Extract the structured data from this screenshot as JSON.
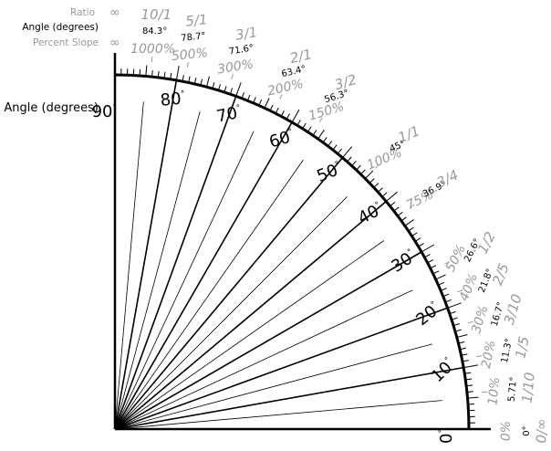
{
  "legend": {
    "ratio_label": "Ratio",
    "angle_label": "Angle (degrees)",
    "percent_label": "Percent Slope",
    "infinity_symbol": "∞"
  },
  "axis_label": "Angle (degrees)",
  "degree_labels": [
    "0°",
    "10°",
    "20°",
    "30°",
    "40°",
    "50°",
    "60°",
    "70°",
    "80°",
    "90°"
  ],
  "slope_marks": [
    {
      "ratio": "10/1",
      "angle": "84.3°",
      "percent": "1000%",
      "angle_value": 84.29
    },
    {
      "ratio": "5/1",
      "angle": "78.7°",
      "percent": "500%",
      "angle_value": 78.69
    },
    {
      "ratio": "3/1",
      "angle": "71.6°",
      "percent": "300%",
      "angle_value": 71.57
    },
    {
      "ratio": "2/1",
      "angle": "63.4°",
      "percent": "200%",
      "angle_value": 63.43
    },
    {
      "ratio": "3/2",
      "angle": "56.3°",
      "percent": "150%",
      "angle_value": 56.31
    },
    {
      "ratio": "1/1",
      "angle": "45°",
      "percent": "100%",
      "angle_value": 45
    },
    {
      "ratio": "3/4",
      "angle": "36.9°",
      "percent": "75%",
      "angle_value": 36.87
    },
    {
      "ratio": "1/2",
      "angle": "26.6°",
      "percent": "50%",
      "angle_value": 26.57
    },
    {
      "ratio": "2/5",
      "angle": "21.8°",
      "percent": "40%",
      "angle_value": 21.8
    },
    {
      "ratio": "3/10",
      "angle": "16.7°",
      "percent": "30%",
      "angle_value": 16.7
    },
    {
      "ratio": "1/5",
      "angle": "11.3°",
      "percent": "20%",
      "angle_value": 11.31
    },
    {
      "ratio": "1/10",
      "angle": "5.71°",
      "percent": "10%",
      "angle_value": 5.71
    },
    {
      "ratio": "0/∞",
      "angle": "0°",
      "percent": "0%",
      "angle_value": 0
    }
  ]
}
